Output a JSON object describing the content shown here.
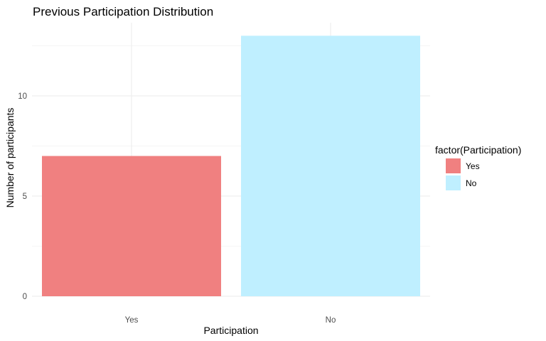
{
  "chart_data": {
    "type": "bar",
    "title": "Previous Participation Distribution",
    "xlabel": "Participation",
    "ylabel": "Number of participants",
    "categories": [
      "Yes",
      "No"
    ],
    "values": [
      7,
      13
    ],
    "colors": [
      "#F08080",
      "#BFEFFF"
    ],
    "ylim": [
      0,
      13.65
    ],
    "yticks": [
      0,
      5,
      10
    ],
    "y_minor_ticks": [
      2.5,
      7.5,
      12.5
    ],
    "grid": true,
    "legend": {
      "title": "factor(Participation)",
      "position": "right",
      "entries": [
        "Yes",
        "No"
      ]
    }
  }
}
